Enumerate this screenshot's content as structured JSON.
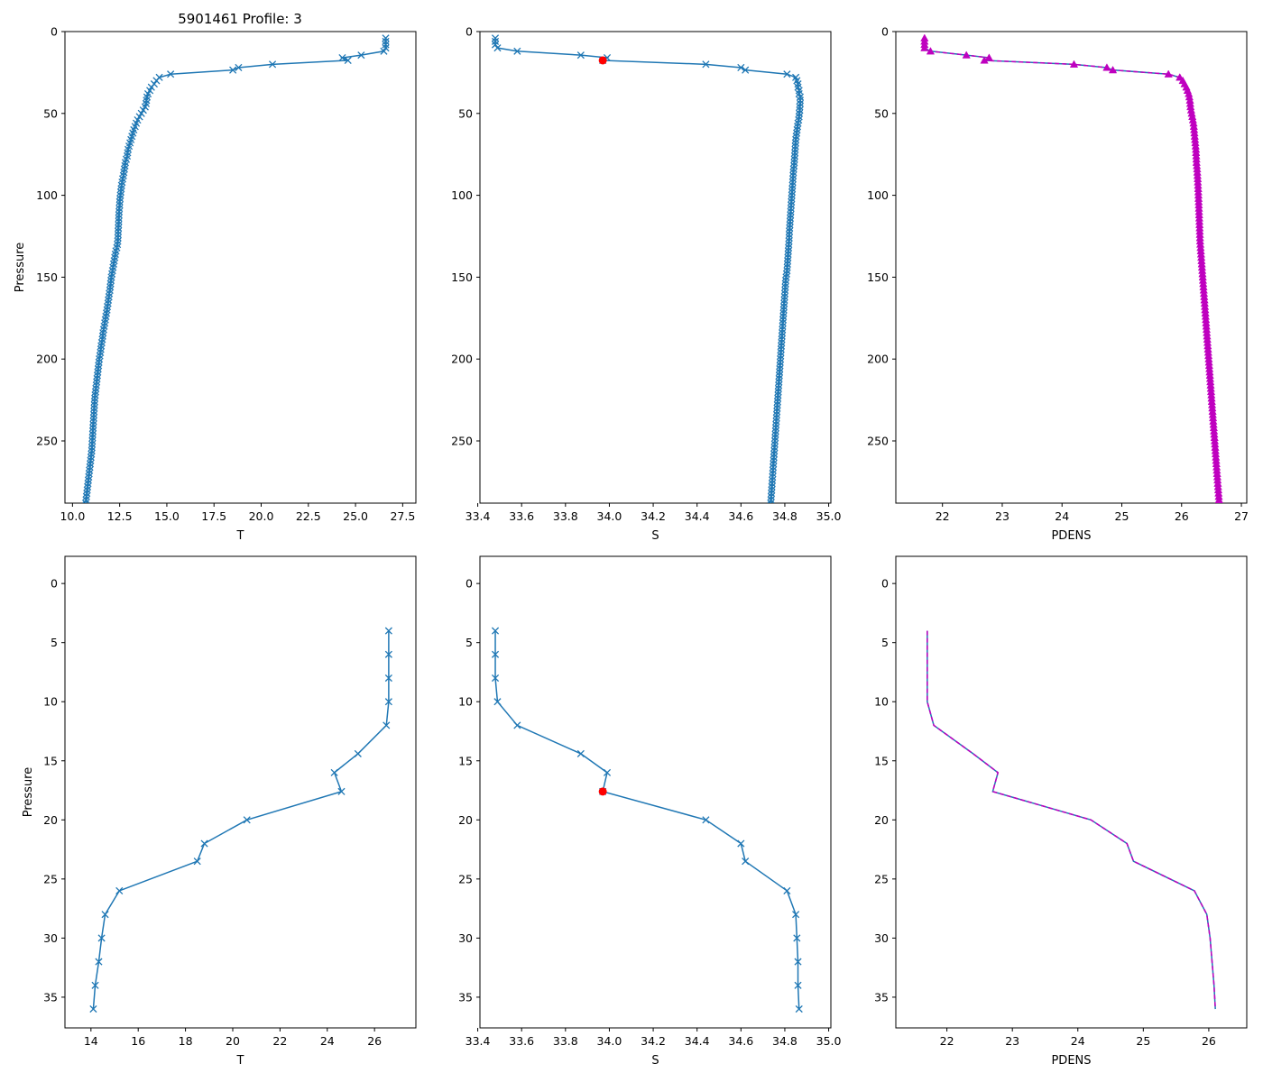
{
  "figure": {
    "title": "5901461 Profile: 3"
  },
  "colors": {
    "series": "#1f77b4",
    "pdens": "#bf00bf",
    "highlight": "#ff0000",
    "axis": "#000000"
  },
  "pressure_top_labels": {
    "ylabel": "Pressure"
  },
  "profile": {
    "pressure": [
      4,
      6,
      8,
      10,
      12,
      14.4,
      16,
      17.6,
      20,
      22,
      23.5,
      26,
      28,
      30,
      32,
      34,
      36,
      38,
      40,
      42,
      44,
      46,
      48,
      50,
      52,
      54,
      56,
      58,
      60,
      62,
      64,
      66,
      68,
      70,
      72,
      74,
      76,
      78,
      80,
      82,
      84,
      86,
      88,
      90,
      92,
      94,
      96,
      98,
      100,
      102,
      104,
      106,
      108,
      110,
      112,
      114,
      116,
      118,
      120,
      122,
      124,
      126,
      128,
      130,
      132,
      134,
      136,
      138,
      140,
      142,
      144,
      146,
      148,
      150,
      152,
      154,
      156,
      158,
      160,
      162,
      164,
      166,
      168,
      170,
      172,
      174,
      176,
      178,
      180,
      182,
      184,
      186,
      188,
      190,
      192,
      194,
      196,
      198,
      200,
      202,
      204,
      206,
      208,
      210,
      212,
      214,
      216,
      218,
      220,
      222,
      224,
      226,
      228,
      230,
      232,
      234,
      236,
      238,
      240,
      242,
      244,
      246,
      248,
      250,
      252,
      254,
      256,
      258,
      260,
      262,
      264,
      266,
      268,
      270,
      272,
      274,
      276,
      278,
      280,
      282,
      284,
      286,
      288
    ],
    "T": [
      26.6,
      26.6,
      26.6,
      26.6,
      26.5,
      25.3,
      24.3,
      24.6,
      20.6,
      18.8,
      18.5,
      15.2,
      14.6,
      14.45,
      14.33,
      14.18,
      14.1,
      14.0,
      13.95,
      13.92,
      13.9,
      13.85,
      13.75,
      13.65,
      13.55,
      13.45,
      13.38,
      13.32,
      13.25,
      13.2,
      13.15,
      13.1,
      13.05,
      13.0,
      12.95,
      12.92,
      12.9,
      12.85,
      12.8,
      12.78,
      12.75,
      12.72,
      12.7,
      12.66,
      12.63,
      12.6,
      12.58,
      12.56,
      12.54,
      12.52,
      12.5,
      12.5,
      12.48,
      12.47,
      12.46,
      12.45,
      12.45,
      12.44,
      12.43,
      12.42,
      12.42,
      12.41,
      12.4,
      12.38,
      12.35,
      12.3,
      12.27,
      12.24,
      12.21,
      12.18,
      12.15,
      12.12,
      12.09,
      12.06,
      12.04,
      12.02,
      12.0,
      11.98,
      11.95,
      11.93,
      11.9,
      11.88,
      11.85,
      11.83,
      11.8,
      11.77,
      11.74,
      11.71,
      11.68,
      11.65,
      11.62,
      11.6,
      11.58,
      11.55,
      11.52,
      11.5,
      11.48,
      11.45,
      11.42,
      11.4,
      11.38,
      11.36,
      11.34,
      11.32,
      11.3,
      11.28,
      11.26,
      11.24,
      11.22,
      11.2,
      11.18,
      11.17,
      11.16,
      11.15,
      11.14,
      11.13,
      11.12,
      11.11,
      11.1,
      11.09,
      11.08,
      11.07,
      11.06,
      11.05,
      11.04,
      11.03,
      11.02,
      11.0,
      10.98,
      10.96,
      10.94,
      10.92,
      10.9,
      10.88,
      10.86,
      10.84,
      10.82,
      10.8,
      10.78,
      10.76,
      10.74,
      10.72,
      10.7
    ],
    "S": [
      33.48,
      33.48,
      33.48,
      33.49,
      33.58,
      33.87,
      33.99,
      33.97,
      34.44,
      34.6,
      34.62,
      34.81,
      34.85,
      34.855,
      34.86,
      34.86,
      34.865,
      34.865,
      34.87,
      34.87,
      34.87,
      34.868,
      34.868,
      34.866,
      34.865,
      34.863,
      34.86,
      34.858,
      34.856,
      34.854,
      34.852,
      34.85,
      34.849,
      34.848,
      34.847,
      34.846,
      34.845,
      34.844,
      34.843,
      34.842,
      34.84,
      34.839,
      34.838,
      34.837,
      34.836,
      34.835,
      34.834,
      34.833,
      34.832,
      34.831,
      34.83,
      34.829,
      34.828,
      34.827,
      34.826,
      34.825,
      34.824,
      34.823,
      34.822,
      34.821,
      34.82,
      34.82,
      34.819,
      34.818,
      34.817,
      34.816,
      34.815,
      34.814,
      34.813,
      34.812,
      34.811,
      34.81,
      34.808,
      34.806,
      34.804,
      34.803,
      34.802,
      34.801,
      34.8,
      34.799,
      34.798,
      34.797,
      34.796,
      34.795,
      34.794,
      34.793,
      34.792,
      34.791,
      34.79,
      34.789,
      34.788,
      34.787,
      34.786,
      34.785,
      34.784,
      34.783,
      34.782,
      34.781,
      34.78,
      34.779,
      34.778,
      34.777,
      34.776,
      34.775,
      34.774,
      34.773,
      34.772,
      34.771,
      34.77,
      34.769,
      34.768,
      34.767,
      34.766,
      34.765,
      34.764,
      34.763,
      34.762,
      34.761,
      34.76,
      34.759,
      34.758,
      34.757,
      34.756,
      34.755,
      34.754,
      34.753,
      34.752,
      34.751,
      34.75,
      34.749,
      34.748,
      34.747,
      34.746,
      34.745,
      34.744,
      34.743,
      34.742,
      34.741,
      34.74,
      34.739,
      34.738,
      34.737,
      34.736,
      34.735,
      34.734
    ],
    "PDENS": [
      21.7,
      21.7,
      21.7,
      21.7,
      21.8,
      22.4,
      22.78,
      22.7,
      24.2,
      24.75,
      24.85,
      25.78,
      25.97,
      26.02,
      26.05,
      26.08,
      26.1,
      26.12,
      26.13,
      26.14,
      26.145,
      26.15,
      26.16,
      26.17,
      26.18,
      26.19,
      26.2,
      26.205,
      26.21,
      26.215,
      26.22,
      26.225,
      26.23,
      26.235,
      26.24,
      26.242,
      26.245,
      26.248,
      26.25,
      26.255,
      26.26,
      26.263,
      26.266,
      26.27,
      26.272,
      26.275,
      26.278,
      26.28,
      26.282,
      26.284,
      26.286,
      26.288,
      26.29,
      26.292,
      26.294,
      26.296,
      26.298,
      26.3,
      26.302,
      26.304,
      26.306,
      26.308,
      26.31,
      26.314,
      26.318,
      26.322,
      26.326,
      26.33,
      26.334,
      26.338,
      26.342,
      26.346,
      26.35,
      26.354,
      26.358,
      26.362,
      26.366,
      26.37,
      26.374,
      26.378,
      26.382,
      26.386,
      26.39,
      26.394,
      26.398,
      26.402,
      26.406,
      26.41,
      26.414,
      26.418,
      26.422,
      26.426,
      26.43,
      26.434,
      26.438,
      26.442,
      26.446,
      26.45,
      26.454,
      26.458,
      26.462,
      26.466,
      26.47,
      26.474,
      26.478,
      26.482,
      26.486,
      26.49,
      26.494,
      26.498,
      26.502,
      26.506,
      26.51,
      26.514,
      26.518,
      26.522,
      26.526,
      26.53,
      26.534,
      26.538,
      26.542,
      26.546,
      26.55,
      26.554,
      26.558,
      26.562,
      26.566,
      26.57,
      26.574,
      26.578,
      26.582,
      26.586,
      26.59,
      26.594,
      26.598,
      26.602,
      26.606,
      26.61,
      26.614,
      26.618,
      26.622,
      26.626,
      26.63
    ]
  },
  "highlight_point": {
    "S": 33.97,
    "pressure": 17.6
  },
  "chart_data": [
    {
      "type": "line",
      "panel": "top-left",
      "title": "5901461 Profile: 3",
      "xvar": "T",
      "xlabel": "T",
      "ylabel": "Pressure",
      "xlim": [
        9.6,
        28.2
      ],
      "ylim": [
        288,
        0
      ],
      "xticks": [
        10.0,
        12.5,
        15.0,
        17.5,
        20.0,
        22.5,
        25.0,
        27.5
      ],
      "xtick_labels": [
        "10.0",
        "12.5",
        "15.0",
        "17.5",
        "20.0",
        "22.5",
        "25.0",
        "27.5"
      ],
      "yticks": [
        0,
        50,
        100,
        150,
        200,
        250
      ],
      "ytick_labels": [
        "0",
        "50",
        "100",
        "150",
        "200",
        "250"
      ],
      "pmax": 288,
      "marker": "x",
      "grid": false
    },
    {
      "type": "line",
      "panel": "top-middle",
      "title": "",
      "xvar": "S",
      "xlabel": "S",
      "ylabel": "",
      "xlim": [
        33.41,
        35.01
      ],
      "ylim": [
        288,
        0
      ],
      "xticks": [
        33.4,
        33.6,
        33.8,
        34.0,
        34.2,
        34.4,
        34.6,
        34.8,
        35.0
      ],
      "xtick_labels": [
        "33.4",
        "33.6",
        "33.8",
        "34.0",
        "34.2",
        "34.4",
        "34.6",
        "34.8",
        "35.0"
      ],
      "yticks": [
        0,
        50,
        100,
        150,
        200,
        250
      ],
      "ytick_labels": [
        "0",
        "50",
        "100",
        "150",
        "200",
        "250"
      ],
      "pmax": 288,
      "marker": "x",
      "highlight": true,
      "grid": false
    },
    {
      "type": "line",
      "panel": "top-right",
      "title": "",
      "xvar": "PDENS",
      "xlabel": "PDENS",
      "ylabel": "",
      "xlim": [
        21.22,
        27.09
      ],
      "ylim": [
        288,
        0
      ],
      "xticks": [
        22,
        23,
        24,
        25,
        26,
        27
      ],
      "xtick_labels": [
        "22",
        "23",
        "24",
        "25",
        "26",
        "27"
      ],
      "yticks": [
        0,
        50,
        100,
        150,
        200,
        250
      ],
      "ytick_labels": [
        "0",
        "50",
        "100",
        "150",
        "200",
        "250"
      ],
      "pmax": 288,
      "marker": "triangle",
      "style": "pdens",
      "grid": false
    },
    {
      "type": "line",
      "panel": "bottom-left",
      "title": "",
      "xvar": "T",
      "xlabel": "T",
      "ylabel": "Pressure",
      "xlim": [
        12.9,
        27.75
      ],
      "ylim": [
        37.6,
        -2.3
      ],
      "xticks": [
        14,
        16,
        18,
        20,
        22,
        24,
        26
      ],
      "xtick_labels": [
        "14",
        "16",
        "18",
        "20",
        "22",
        "24",
        "26"
      ],
      "yticks": [
        0,
        5,
        10,
        15,
        20,
        25,
        30,
        35
      ],
      "ytick_labels": [
        "0",
        "5",
        "10",
        "15",
        "20",
        "25",
        "30",
        "35"
      ],
      "pmax": 36,
      "marker": "x",
      "grid": false
    },
    {
      "type": "line",
      "panel": "bottom-middle",
      "title": "",
      "xvar": "S",
      "xlabel": "S",
      "ylabel": "",
      "xlim": [
        33.41,
        35.01
      ],
      "ylim": [
        37.6,
        -2.3
      ],
      "xticks": [
        33.4,
        33.6,
        33.8,
        34.0,
        34.2,
        34.4,
        34.6,
        34.8,
        35.0
      ],
      "xtick_labels": [
        "33.4",
        "33.6",
        "33.8",
        "34.0",
        "34.2",
        "34.4",
        "34.6",
        "34.8",
        "35.0"
      ],
      "yticks": [
        0,
        5,
        10,
        15,
        20,
        25,
        30,
        35
      ],
      "ytick_labels": [
        "0",
        "5",
        "10",
        "15",
        "20",
        "25",
        "30",
        "35"
      ],
      "pmax": 36,
      "marker": "x",
      "highlight": true,
      "grid": false
    },
    {
      "type": "line",
      "panel": "bottom-right",
      "title": "",
      "xvar": "PDENS",
      "xlabel": "PDENS",
      "ylabel": "",
      "xlim": [
        21.22,
        26.58
      ],
      "ylim": [
        37.6,
        -2.3
      ],
      "xticks": [
        22,
        23,
        24,
        25,
        26
      ],
      "xtick_labels": [
        "22",
        "23",
        "24",
        "25",
        "26"
      ],
      "yticks": [
        0,
        5,
        10,
        15,
        20,
        25,
        30,
        35
      ],
      "ytick_labels": [
        "0",
        "5",
        "10",
        "15",
        "20",
        "25",
        "30",
        "35"
      ],
      "pmax": 36,
      "marker": "none",
      "style": "pdens",
      "grid": false
    }
  ]
}
